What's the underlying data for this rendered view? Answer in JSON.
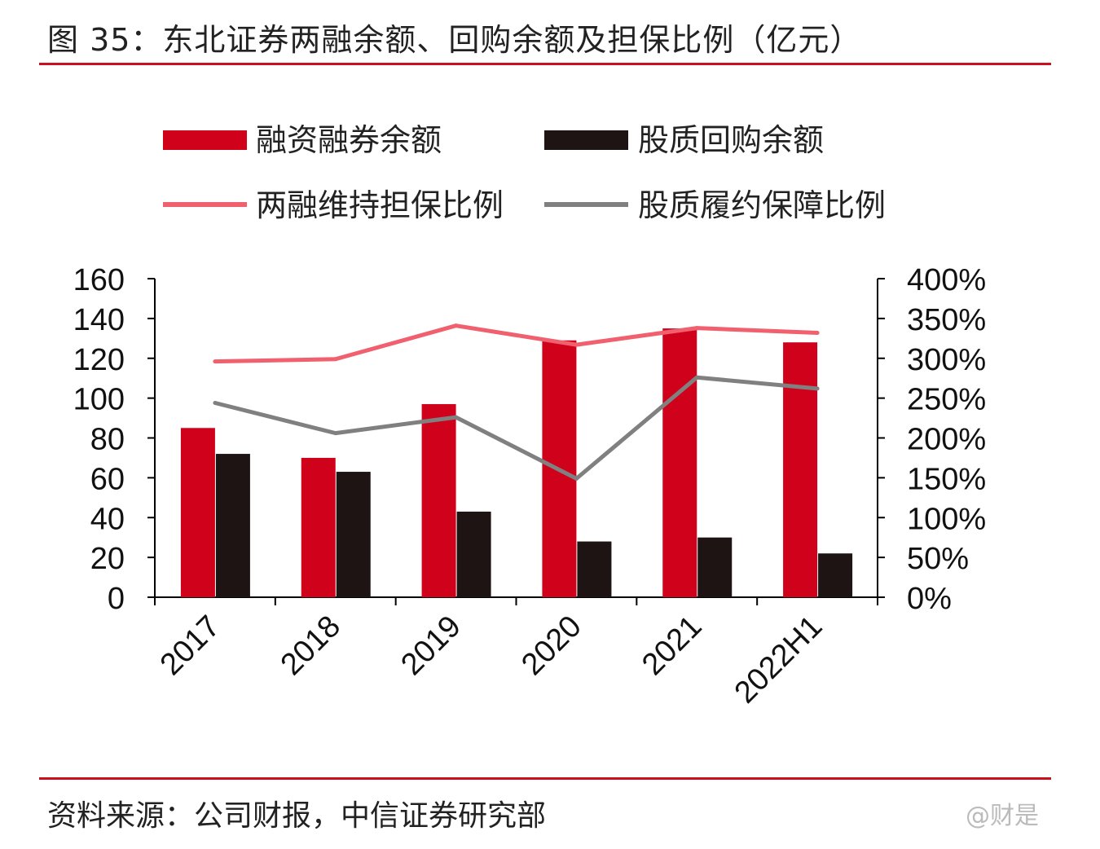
{
  "title": "图 35：东北证券两融余额、回购余额及担保比例（亿元）",
  "source": "资料来源：公司财报，中信证券研究部",
  "watermark": "@财是",
  "colors": {
    "accent": "#c8101e",
    "margin_bar": "#d0021b",
    "pledge_bar": "#1e1414",
    "margin_ratio_line": "#f0606e",
    "pledge_ratio_line": "#808080"
  },
  "chart_data": {
    "type": "bar+line",
    "categories": [
      "2017",
      "2018",
      "2019",
      "2020",
      "2021",
      "2022H1"
    ],
    "series": [
      {
        "name": "融资融券余额",
        "type": "bar",
        "axis": "left",
        "values": [
          85,
          70,
          97,
          129,
          135,
          128
        ]
      },
      {
        "name": "股质回购余额",
        "type": "bar",
        "axis": "left",
        "values": [
          72,
          63,
          43,
          28,
          30,
          22
        ]
      },
      {
        "name": "两融维持担保比例",
        "type": "line",
        "axis": "right",
        "values": [
          296,
          299,
          341,
          317,
          338,
          332
        ]
      },
      {
        "name": "股质履约保障比例",
        "type": "line",
        "axis": "right",
        "values": [
          244,
          206,
          226,
          149,
          276,
          262
        ]
      }
    ],
    "ylim_left": [
      0,
      160
    ],
    "yticks_left": [
      "0",
      "20",
      "40",
      "60",
      "80",
      "100",
      "120",
      "140",
      "160"
    ],
    "ylim_right": [
      0,
      400
    ],
    "yticks_right": [
      "0%",
      "50%",
      "100%",
      "150%",
      "200%",
      "250%",
      "300%",
      "350%",
      "400%"
    ],
    "legend_position": "top",
    "grid": false
  }
}
